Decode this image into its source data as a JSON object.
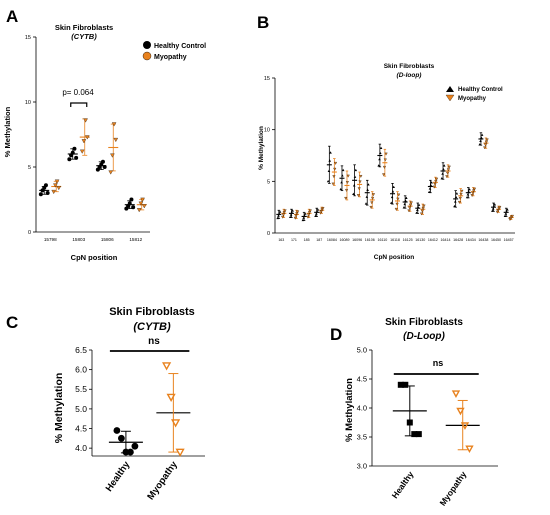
{
  "panels": [
    {
      "letter": "A",
      "title": "Skin Fibroblasts",
      "subtitle": "(CYTB)",
      "ylabel": "% Methylation",
      "xlabel": "CpN position",
      "legend": [
        "Healthy Control",
        "Myopathy"
      ],
      "annotation": "p= 0.064"
    },
    {
      "letter": "B",
      "title": "Skin Fibroblasts",
      "subtitle": "(D-loop)",
      "ylabel": "% Methylation",
      "xlabel": "CpN position",
      "legend": [
        "Healthy Control",
        "Myopathy"
      ]
    },
    {
      "letter": "C",
      "title": "Skin Fibroblasts",
      "subtitle": "(CYTB)",
      "ylabel": "% Methylation",
      "annotation": "ns"
    },
    {
      "letter": "D",
      "title": "Skin Fibroblasts",
      "subtitle": "(D-Loop)",
      "ylabel": "% Methylation",
      "annotation": "ns"
    }
  ],
  "colors": {
    "healthy": "#000000",
    "myopathy": "#E8821E"
  },
  "chart_data": [
    {
      "type": "scatter",
      "panel": "A",
      "categories": [
        "15798",
        "15803",
        "15806",
        "15812"
      ],
      "ylim": [
        0,
        15
      ],
      "yticks": [
        0,
        5,
        10,
        15
      ],
      "series": [
        {
          "name": "Healthy Control",
          "means": [
            3.2,
            6.0,
            5.1,
            2.1
          ],
          "sd": [
            0.3,
            0.4,
            0.3,
            0.3
          ],
          "points": [
            [
              2.9,
              3.2,
              3.4,
              3.6,
              3.0
            ],
            [
              5.6,
              5.9,
              6.1,
              6.4,
              5.7
            ],
            [
              4.8,
              5.0,
              5.2,
              5.4,
              5.0
            ],
            [
              1.8,
              2.0,
              2.2,
              2.5,
              1.9
            ]
          ]
        },
        {
          "name": "Myopathy",
          "means": [
            3.5,
            7.3,
            6.5,
            2.1
          ],
          "sd": [
            0.4,
            1.4,
            1.8,
            0.4
          ],
          "points": [
            [
              3.1,
              3.6,
              3.9,
              3.4
            ],
            [
              6.2,
              7.0,
              8.6,
              7.3
            ],
            [
              4.6,
              5.9,
              8.3,
              7.1
            ],
            [
              1.7,
              2.2,
              2.5,
              2.0
            ]
          ]
        }
      ]
    },
    {
      "type": "scatter",
      "panel": "B",
      "categories": [
        "163",
        "171",
        "185",
        "187",
        "16084",
        "16089",
        "16096",
        "16106",
        "16110",
        "16118",
        "16125",
        "16130",
        "16412",
        "16414",
        "16428",
        "16434",
        "16438",
        "16450",
        "16457"
      ],
      "ylim": [
        0,
        15
      ],
      "yticks": [
        0,
        5,
        10,
        15
      ],
      "series": [
        {
          "name": "Healthy Control",
          "means": [
            1.8,
            1.9,
            1.6,
            2.0,
            6.6,
            5.3,
            5.1,
            3.9,
            7.5,
            3.8,
            3.0,
            2.4,
            4.5,
            6.0,
            3.3,
            3.9,
            9.1,
            2.5,
            2.0
          ],
          "sd": [
            0.4,
            0.4,
            0.4,
            0.4,
            1.8,
            1.2,
            1.5,
            1.2,
            1.1,
            1.0,
            0.6,
            0.5,
            0.6,
            0.8,
            0.8,
            0.5,
            0.6,
            0.4,
            0.4
          ]
        },
        {
          "name": "Myopathy",
          "means": [
            1.9,
            1.8,
            1.9,
            2.2,
            5.9,
            4.6,
            4.7,
            3.2,
            6.8,
            3.1,
            2.6,
            2.3,
            4.9,
            6.0,
            3.6,
            4.0,
            8.7,
            2.3,
            1.5
          ],
          "sd": [
            0.4,
            0.4,
            0.4,
            0.3,
            1.3,
            1.4,
            1.2,
            0.8,
            1.3,
            0.9,
            0.5,
            0.5,
            0.5,
            0.6,
            0.7,
            0.4,
            0.5,
            0.3,
            0.2
          ]
        }
      ]
    },
    {
      "type": "scatter",
      "panel": "C",
      "categories": [
        "Healthy",
        "Myopathy"
      ],
      "ylim": [
        3.8,
        6.5
      ],
      "yticks": [
        4.0,
        4.5,
        5.0,
        5.5,
        6.0,
        6.5
      ],
      "series": [
        {
          "name": "Healthy",
          "mean": 4.15,
          "sd": [
            3.88,
            4.43
          ],
          "points": [
            4.45,
            4.25,
            3.9,
            3.9,
            4.05
          ]
        },
        {
          "name": "Myopathy",
          "mean": 4.9,
          "sd": [
            3.9,
            5.9
          ],
          "points": [
            6.1,
            5.3,
            4.65,
            3.9
          ]
        }
      ]
    },
    {
      "type": "scatter",
      "panel": "D",
      "categories": [
        "Healthy",
        "Myopathy"
      ],
      "ylim": [
        3.0,
        5.0
      ],
      "yticks": [
        3.0,
        3.5,
        4.0,
        4.5,
        5.0
      ],
      "series": [
        {
          "name": "Healthy",
          "mean": 3.95,
          "sd": [
            3.52,
            4.38
          ],
          "points": [
            4.4,
            4.4,
            3.75,
            3.55,
            3.55
          ]
        },
        {
          "name": "Myopathy",
          "mean": 3.7,
          "sd": [
            3.28,
            4.13
          ],
          "points": [
            4.25,
            3.95,
            3.7,
            3.3
          ]
        }
      ]
    }
  ]
}
